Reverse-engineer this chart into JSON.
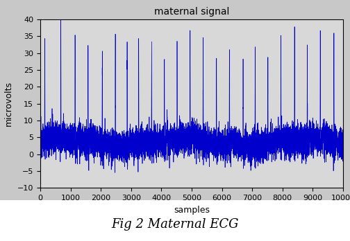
{
  "title": "maternal signal",
  "xlabel": "samples",
  "ylabel": "microvolts",
  "xlim": [
    0,
    10000
  ],
  "ylim": [
    -10,
    40
  ],
  "xticks": [
    0,
    1000,
    2000,
    3000,
    4000,
    5000,
    6000,
    7000,
    8000,
    9000,
    10000
  ],
  "yticks": [
    -10,
    -5,
    0,
    5,
    10,
    15,
    20,
    25,
    30,
    35,
    40
  ],
  "line_color": "#0000cc",
  "fig_bg_color": "#c8c8c8",
  "plot_bg_color": "#d8d8d8",
  "caption": "Fig 2 Maternal ECG",
  "caption_fontsize": 13,
  "title_fontsize": 10,
  "label_fontsize": 9,
  "tick_fontsize": 8,
  "n_samples": 10000,
  "baseline": 3.5,
  "noise_std": 2.2,
  "qrs_positions": [
    150,
    680,
    1150,
    1580,
    2050,
    2480,
    2870,
    3250,
    3680,
    4100,
    4520,
    4950,
    5380,
    5820,
    6250,
    6700,
    7100,
    7520,
    7950,
    8400,
    8820,
    9250,
    9700
  ],
  "qrs_amplitudes": [
    35,
    40,
    37.5,
    32.5,
    32,
    39,
    31.5,
    34,
    33.5,
    29,
    33.5,
    35.5,
    32.5,
    28.5,
    32,
    29,
    34,
    25,
    34.5,
    35.5,
    33,
    34,
    37.5
  ]
}
